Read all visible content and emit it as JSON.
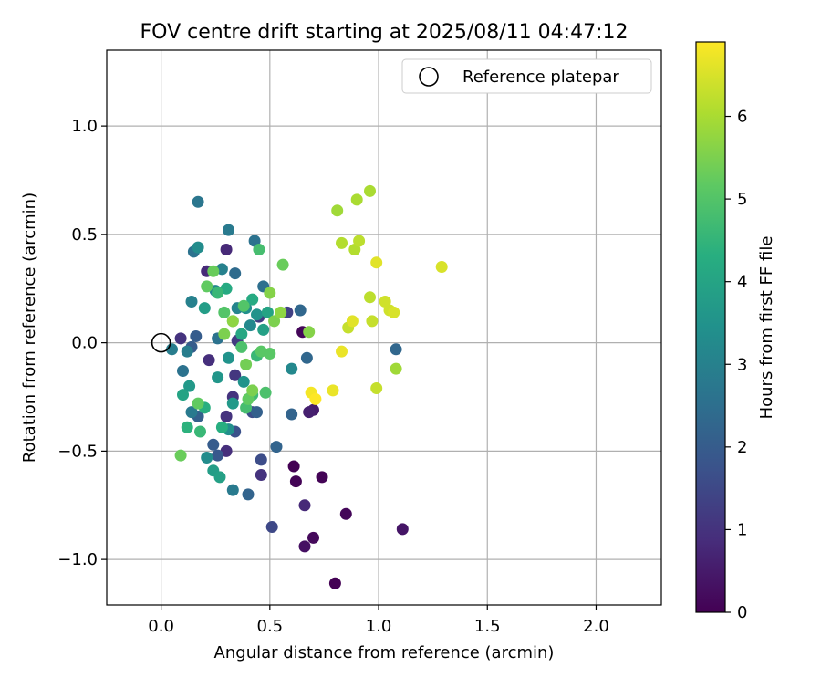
{
  "chart_data": {
    "type": "scatter",
    "title": "FOV centre drift starting at 2025/08/11 04:47:12",
    "xlabel": "Angular distance from reference (arcmin)",
    "ylabel": "Rotation from reference (arcmin)",
    "xlim": [
      -0.25,
      2.3
    ],
    "ylim": [
      -1.21,
      1.35
    ],
    "x_ticks": [
      0.0,
      0.5,
      1.0,
      1.5,
      2.0
    ],
    "y_ticks": [
      -1.0,
      -0.5,
      0.0,
      0.5,
      1.0
    ],
    "x_tick_labels": [
      "0.0",
      "0.5",
      "1.0",
      "1.5",
      "2.0"
    ],
    "y_tick_labels": [
      "−1.0",
      "−0.5",
      "0.0",
      "0.5",
      "1.0"
    ],
    "grid": true,
    "legend": {
      "position": "top-right",
      "entries": [
        "Reference platepar"
      ]
    },
    "reference_point": {
      "x": 0.0,
      "y": 0.0,
      "marker": "open-circle"
    },
    "colorbar": {
      "label": "Hours from first FF file",
      "colormap": "viridis",
      "range": [
        0,
        6.9
      ],
      "ticks": [
        0,
        1,
        2,
        3,
        4,
        5,
        6
      ],
      "tick_labels": [
        "0",
        "1",
        "2",
        "3",
        "4",
        "5",
        "6"
      ]
    },
    "series": [
      {
        "value_name": "hours",
        "points": [
          [
            0.8,
            -1.11,
            0.0
          ],
          [
            0.61,
            -0.57,
            0.0
          ],
          [
            0.62,
            -0.64,
            0.05
          ],
          [
            0.74,
            -0.62,
            0.05
          ],
          [
            0.85,
            -0.79,
            0.1
          ],
          [
            0.7,
            -0.9,
            0.15
          ],
          [
            0.66,
            -0.94,
            0.3
          ],
          [
            1.11,
            -0.86,
            0.4
          ],
          [
            0.65,
            0.05,
            0.1
          ],
          [
            0.7,
            -0.31,
            0.5
          ],
          [
            0.68,
            -0.32,
            0.6
          ],
          [
            0.66,
            -0.75,
            0.8
          ],
          [
            0.46,
            -0.61,
            1.0
          ],
          [
            0.3,
            0.43,
            0.8
          ],
          [
            0.21,
            0.33,
            0.8
          ],
          [
            0.09,
            0.02,
            1.0
          ],
          [
            0.22,
            -0.08,
            0.9
          ],
          [
            0.3,
            -0.5,
            0.9
          ],
          [
            0.3,
            -0.34,
            1.0
          ],
          [
            0.33,
            -0.25,
            1.0
          ],
          [
            0.34,
            -0.15,
            1.1
          ],
          [
            0.35,
            0.01,
            1.2
          ],
          [
            0.45,
            0.12,
            1.2
          ],
          [
            0.58,
            0.14,
            1.3
          ],
          [
            0.51,
            -0.85,
            1.5
          ],
          [
            0.46,
            -0.54,
            1.6
          ],
          [
            0.42,
            -0.32,
            1.6
          ],
          [
            0.34,
            -0.41,
            1.7
          ],
          [
            0.26,
            -0.52,
            1.9
          ],
          [
            0.24,
            -0.47,
            2.0
          ],
          [
            0.16,
            0.03,
            2.0
          ],
          [
            0.14,
            -0.02,
            2.0
          ],
          [
            0.17,
            -0.34,
            2.1
          ],
          [
            0.44,
            -0.32,
            2.1
          ],
          [
            0.4,
            -0.7,
            2.2
          ],
          [
            0.53,
            -0.48,
            2.2
          ],
          [
            0.64,
            0.15,
            2.3
          ],
          [
            0.67,
            -0.07,
            2.3
          ],
          [
            0.6,
            -0.33,
            2.2
          ],
          [
            1.08,
            -0.03,
            2.3
          ],
          [
            0.47,
            0.26,
            2.5
          ],
          [
            0.43,
            0.47,
            2.6
          ],
          [
            0.26,
            0.02,
            2.6
          ],
          [
            0.34,
            0.32,
            2.4
          ],
          [
            0.15,
            0.42,
            2.6
          ],
          [
            0.17,
            0.65,
            2.7
          ],
          [
            0.31,
            0.52,
            2.8
          ],
          [
            0.33,
            -0.68,
            2.8
          ],
          [
            0.14,
            -0.32,
            2.8
          ],
          [
            0.1,
            -0.13,
            2.6
          ],
          [
            0.05,
            -0.03,
            2.9
          ],
          [
            0.12,
            -0.04,
            2.9
          ],
          [
            0.14,
            0.19,
            3.0
          ],
          [
            0.28,
            0.34,
            3.0
          ],
          [
            0.35,
            0.16,
            3.1
          ],
          [
            0.41,
            0.08,
            3.2
          ],
          [
            0.6,
            -0.12,
            3.2
          ],
          [
            0.21,
            -0.53,
            3.3
          ],
          [
            0.17,
            0.44,
            3.3
          ],
          [
            0.25,
            0.24,
            3.2
          ],
          [
            0.31,
            -0.4,
            3.4
          ],
          [
            0.39,
            0.16,
            3.4
          ],
          [
            0.44,
            0.13,
            3.5
          ],
          [
            0.31,
            -0.07,
            3.5
          ],
          [
            0.38,
            -0.18,
            3.5
          ],
          [
            0.26,
            -0.16,
            3.6
          ],
          [
            0.13,
            -0.2,
            3.7
          ],
          [
            0.33,
            -0.28,
            3.7
          ],
          [
            0.2,
            0.16,
            3.8
          ],
          [
            0.24,
            -0.59,
            3.8
          ],
          [
            0.27,
            -0.62,
            3.9
          ],
          [
            0.47,
            0.06,
            3.9
          ],
          [
            0.49,
            0.14,
            4.0
          ],
          [
            0.1,
            -0.24,
            4.0
          ],
          [
            0.37,
            0.04,
            4.1
          ],
          [
            0.42,
            0.2,
            4.2
          ],
          [
            0.3,
            0.25,
            4.2
          ],
          [
            0.2,
            -0.3,
            4.3
          ],
          [
            0.28,
            -0.39,
            4.3
          ],
          [
            0.12,
            -0.39,
            4.4
          ],
          [
            0.18,
            -0.41,
            4.6
          ],
          [
            0.44,
            -0.06,
            4.6
          ],
          [
            0.26,
            0.23,
            4.6
          ],
          [
            0.33,
            0.1,
            4.7
          ],
          [
            0.42,
            -0.24,
            4.7
          ],
          [
            0.45,
            0.43,
            4.8
          ],
          [
            0.39,
            -0.3,
            4.8
          ],
          [
            0.37,
            -0.02,
            4.9
          ],
          [
            0.48,
            -0.23,
            4.9
          ],
          [
            0.29,
            0.14,
            5.0
          ],
          [
            0.38,
            0.17,
            5.0
          ],
          [
            0.46,
            -0.04,
            5.1
          ],
          [
            0.5,
            -0.05,
            5.1
          ],
          [
            0.21,
            0.26,
            5.2
          ],
          [
            0.17,
            -0.28,
            5.2
          ],
          [
            0.4,
            -0.26,
            5.2
          ],
          [
            0.56,
            0.36,
            5.3
          ],
          [
            0.09,
            -0.52,
            5.3
          ],
          [
            0.24,
            0.33,
            5.3
          ],
          [
            0.39,
            -0.1,
            5.4
          ],
          [
            0.52,
            0.1,
            5.5
          ],
          [
            0.29,
            0.04,
            5.5
          ],
          [
            0.42,
            -0.22,
            5.5
          ],
          [
            0.68,
            0.05,
            5.6
          ],
          [
            0.5,
            0.23,
            5.6
          ],
          [
            0.33,
            0.1,
            5.7
          ],
          [
            0.55,
            0.14,
            5.7
          ],
          [
            0.81,
            0.61,
            5.9
          ],
          [
            1.08,
            -0.12,
            5.9
          ],
          [
            0.9,
            0.66,
            6.0
          ],
          [
            0.96,
            0.7,
            6.0
          ],
          [
            0.83,
            0.46,
            6.1
          ],
          [
            0.89,
            0.43,
            6.1
          ],
          [
            0.91,
            0.47,
            6.2
          ],
          [
            0.96,
            0.21,
            6.2
          ],
          [
            0.99,
            -0.21,
            6.3
          ],
          [
            0.97,
            0.1,
            6.3
          ],
          [
            0.86,
            0.07,
            6.3
          ],
          [
            1.03,
            0.19,
            6.4
          ],
          [
            1.05,
            0.15,
            6.4
          ],
          [
            1.07,
            0.14,
            6.5
          ],
          [
            1.29,
            0.35,
            6.5
          ],
          [
            0.99,
            0.37,
            6.6
          ],
          [
            0.88,
            0.1,
            6.6
          ],
          [
            0.83,
            -0.04,
            6.7
          ],
          [
            0.79,
            -0.22,
            6.7
          ],
          [
            0.69,
            -0.23,
            6.8
          ],
          [
            0.71,
            -0.26,
            6.9
          ]
        ]
      }
    ]
  }
}
